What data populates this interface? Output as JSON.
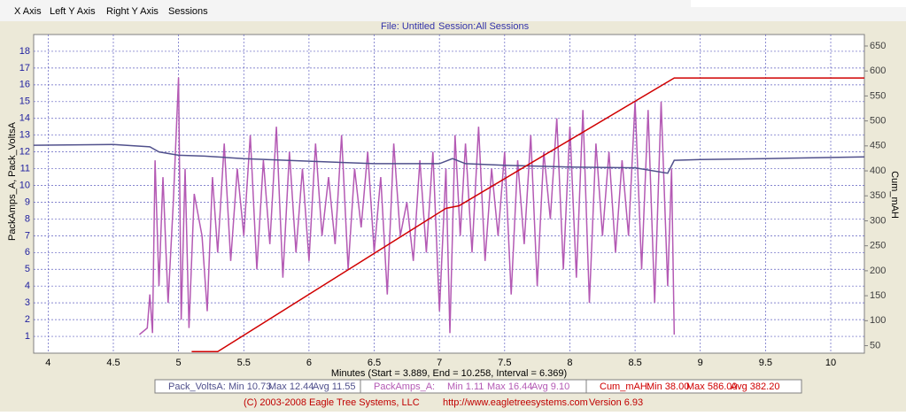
{
  "menu": [
    "X Axis",
    "Left Y Axis",
    "Right Y Axis",
    "Sessions"
  ],
  "chart_data": {
    "type": "line",
    "file": "File: Untitled",
    "session": "Session:All Sessions",
    "x_label": "Minutes (Start = 3.889,  End = 10.258,  Interval =  6.369)",
    "y_label": "PackAmps_A, Pack_VoltsA",
    "y2_label": "Cum_mAH",
    "xlim": [
      3.889,
      10.258
    ],
    "xticks": [
      4,
      4.5,
      5,
      5.5,
      6,
      6.5,
      7,
      7.5,
      8,
      8.5,
      9,
      9.5,
      10
    ],
    "ylim": [
      0,
      19
    ],
    "yticks": [
      1,
      2,
      3,
      4,
      5,
      6,
      7,
      8,
      9,
      10,
      11,
      12,
      13,
      14,
      15,
      16,
      17,
      18
    ],
    "y2lim": [
      35,
      673
    ],
    "y2ticks": [
      50,
      100,
      150,
      200,
      250,
      300,
      350,
      400,
      450,
      500,
      550,
      600,
      650
    ],
    "grid": true,
    "series": [
      {
        "name": "Pack_VoltsA:",
        "color": "#50508c",
        "stats": [
          "Min 10.73",
          "Max 12.44",
          "Avg 11.55"
        ],
        "x": [
          3.889,
          4.5,
          4.78,
          4.85,
          5.0,
          5.2,
          5.5,
          6.0,
          6.5,
          7.0,
          7.1,
          7.2,
          7.5,
          8.0,
          8.5,
          8.75,
          8.8,
          9.0,
          9.5,
          10.258
        ],
        "values": [
          12.4,
          12.44,
          12.3,
          12.0,
          11.8,
          11.75,
          11.6,
          11.45,
          11.3,
          11.3,
          11.6,
          11.3,
          11.2,
          11.1,
          11.05,
          10.73,
          11.5,
          11.55,
          11.6,
          11.7
        ]
      },
      {
        "name": "PackAmps_A:",
        "color": "#b45ab4",
        "stats": [
          "Min 1.11",
          "Max 16.44",
          "Avg 9.10"
        ],
        "x": [
          4.7,
          4.76,
          4.78,
          4.8,
          4.82,
          4.85,
          4.88,
          4.92,
          4.96,
          5.0,
          5.02,
          5.05,
          5.08,
          5.12,
          5.18,
          5.22,
          5.26,
          5.3,
          5.35,
          5.4,
          5.45,
          5.5,
          5.55,
          5.6,
          5.65,
          5.7,
          5.75,
          5.8,
          5.85,
          5.9,
          5.95,
          6.0,
          6.05,
          6.1,
          6.15,
          6.2,
          6.25,
          6.3,
          6.35,
          6.4,
          6.45,
          6.5,
          6.55,
          6.6,
          6.65,
          6.7,
          6.75,
          6.8,
          6.85,
          6.9,
          6.95,
          7.0,
          7.05,
          7.08,
          7.12,
          7.16,
          7.2,
          7.25,
          7.3,
          7.35,
          7.4,
          7.45,
          7.5,
          7.55,
          7.6,
          7.65,
          7.7,
          7.75,
          7.8,
          7.85,
          7.9,
          7.95,
          8.0,
          8.05,
          8.1,
          8.15,
          8.2,
          8.25,
          8.3,
          8.35,
          8.4,
          8.45,
          8.5,
          8.55,
          8.6,
          8.65,
          8.7,
          8.75,
          8.78,
          8.8
        ],
        "values": [
          1.11,
          1.5,
          3.5,
          1.2,
          11.5,
          4.0,
          10.5,
          3.0,
          9.0,
          16.44,
          2.0,
          11.0,
          1.5,
          9.5,
          7.0,
          2.5,
          10.5,
          6.0,
          12.5,
          5.5,
          11.0,
          7.0,
          13.0,
          5.0,
          11.5,
          6.5,
          13.5,
          4.5,
          12.0,
          6.0,
          11.0,
          5.5,
          12.5,
          7.0,
          10.5,
          6.5,
          13.0,
          5.0,
          11.0,
          7.5,
          12.0,
          6.0,
          10.5,
          3.5,
          12.5,
          7.0,
          9.0,
          5.5,
          11.5,
          6.0,
          12.0,
          2.5,
          11.0,
          1.2,
          13.0,
          7.0,
          12.5,
          6.0,
          13.5,
          5.5,
          11.0,
          7.0,
          12.0,
          3.5,
          11.5,
          6.5,
          13.0,
          4.0,
          12.0,
          8.0,
          14.0,
          5.0,
          13.5,
          4.5,
          14.5,
          3.0,
          12.5,
          7.0,
          12.0,
          6.0,
          11.5,
          7.0,
          15.0,
          5.0,
          14.5,
          3.0,
          15.0,
          4.0,
          11.0,
          1.11
        ]
      },
      {
        "name": "Cum_mAH:",
        "color": "#d00000",
        "axis": "y2",
        "stats": [
          "Min 38.00",
          "Max 586.00",
          "Avg 382.20"
        ],
        "x": [
          5.1,
          5.3,
          7.05,
          7.15,
          8.8,
          10.258
        ],
        "values": [
          38,
          38,
          325,
          330,
          586,
          586
        ]
      }
    ]
  },
  "footer": [
    "(C) 2003-2008 Eagle Tree Systems, LLC",
    "http://www.eagletreesystems.com",
    "Version 6.93"
  ]
}
